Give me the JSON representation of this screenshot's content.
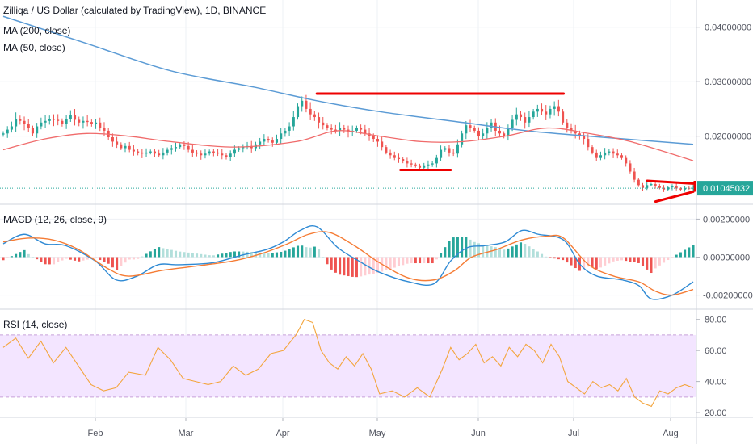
{
  "colors": {
    "up": "#26a69a",
    "down": "#ef5350",
    "ma200": "#5b9bd5",
    "ma50": "#f06b6b",
    "macd": "#2f8ad4",
    "signal": "#f57c35",
    "hist_up": "#26a69a",
    "hist_up_fade": "#b2dfdb",
    "hist_down": "#ef5350",
    "hist_down_fade": "#ffcdd2",
    "rsi": "#f3a53d",
    "rsi_band": "#f3e5ff",
    "trend": "#ee0000",
    "price_tag": "#26a69a",
    "grid": "#eef0f4"
  },
  "chart_data": [
    {
      "type": "candlestick",
      "title": "Zilliqa / US Dollar (calculated by TradingView), 1D, BINANCE",
      "indicators": [
        "MA (200, close)",
        "MA (50, close)"
      ],
      "x_labels": [
        "Feb",
        "Mar",
        "Apr",
        "May",
        "Jun",
        "Jul",
        "Aug"
      ],
      "y_ticks": [
        "0.04000000",
        "0.03000000",
        "0.02000000"
      ],
      "last_price": "0.01045032",
      "ylim": [
        0.0075,
        0.045
      ],
      "close_series": [
        0.0205,
        0.0212,
        0.0218,
        0.0232,
        0.0228,
        0.0222,
        0.0215,
        0.0205,
        0.0218,
        0.0225,
        0.0228,
        0.0232,
        0.023,
        0.0228,
        0.0222,
        0.0232,
        0.0238,
        0.023,
        0.0225,
        0.0228,
        0.0226,
        0.0222,
        0.0225,
        0.0215,
        0.021,
        0.0198,
        0.019,
        0.0185,
        0.0178,
        0.0182,
        0.0175,
        0.0172,
        0.017,
        0.0168,
        0.017,
        0.0172,
        0.0168,
        0.0165,
        0.017,
        0.0175,
        0.0178,
        0.018,
        0.0185,
        0.0182,
        0.0175,
        0.017,
        0.0168,
        0.0165,
        0.0168,
        0.0172,
        0.017,
        0.0168,
        0.0165,
        0.0162,
        0.0168,
        0.0175,
        0.0178,
        0.018,
        0.0182,
        0.0178,
        0.0185,
        0.019,
        0.0195,
        0.0192,
        0.0188,
        0.0195,
        0.0205,
        0.021,
        0.0218,
        0.0235,
        0.0255,
        0.0265,
        0.025,
        0.024,
        0.0235,
        0.0225,
        0.022,
        0.0215,
        0.0212,
        0.021,
        0.0215,
        0.0212,
        0.0208,
        0.021,
        0.0215,
        0.0212,
        0.0205,
        0.02,
        0.0195,
        0.019,
        0.018,
        0.017,
        0.0165,
        0.016,
        0.0158,
        0.0155,
        0.015,
        0.0148,
        0.0145,
        0.0142,
        0.0145,
        0.0148,
        0.015,
        0.016,
        0.0175,
        0.0178,
        0.017,
        0.0168,
        0.0185,
        0.0205,
        0.022,
        0.0215,
        0.021,
        0.02,
        0.0205,
        0.0215,
        0.0225,
        0.021,
        0.0205,
        0.02,
        0.0215,
        0.023,
        0.024,
        0.0235,
        0.0225,
        0.0235,
        0.0245,
        0.025,
        0.0245,
        0.024,
        0.025,
        0.0255,
        0.0245,
        0.0225,
        0.0215,
        0.021,
        0.0205,
        0.02,
        0.0195,
        0.018,
        0.017,
        0.016,
        0.0165,
        0.017,
        0.0172,
        0.0168,
        0.0165,
        0.016,
        0.015,
        0.0135,
        0.012,
        0.011,
        0.0105,
        0.011,
        0.0112,
        0.0108,
        0.0105,
        0.0102,
        0.0106,
        0.0108,
        0.0104,
        0.0102,
        0.0105,
        0.0104,
        0.0105
      ],
      "ma200_points": [
        [
          0,
          0.042
        ],
        [
          20,
          0.037
        ],
        [
          40,
          0.032
        ],
        [
          60,
          0.029
        ],
        [
          75,
          0.0265
        ],
        [
          90,
          0.0245
        ],
        [
          110,
          0.0225
        ],
        [
          125,
          0.021
        ],
        [
          140,
          0.02
        ],
        [
          165,
          0.0185
        ]
      ],
      "ma50_points": [
        [
          0,
          0.0175
        ],
        [
          10,
          0.0195
        ],
        [
          20,
          0.0205
        ],
        [
          30,
          0.02
        ],
        [
          40,
          0.019
        ],
        [
          55,
          0.018
        ],
        [
          70,
          0.019
        ],
        [
          80,
          0.021
        ],
        [
          90,
          0.02
        ],
        [
          100,
          0.019
        ],
        [
          110,
          0.019
        ],
        [
          120,
          0.02
        ],
        [
          130,
          0.0215
        ],
        [
          140,
          0.0205
        ],
        [
          150,
          0.019
        ],
        [
          165,
          0.0155
        ]
      ],
      "trendlines": [
        {
          "x1": 75,
          "y1": 0.0278,
          "x2": 134,
          "y2": 0.0278
        },
        {
          "x1": 95,
          "y1": 0.0138,
          "x2": 107,
          "y2": 0.0138
        },
        {
          "x1": 154,
          "y1": 0.0118,
          "x2": 165,
          "y2": 0.0113
        },
        {
          "x1": 156,
          "y1": 0.008,
          "x2": 165,
          "y2": 0.0098
        }
      ]
    },
    {
      "type": "macd",
      "title": "MACD (12, 26, close, 9)",
      "y_ticks": [
        "0.00200000",
        "0.00000000",
        "-0.00200000"
      ],
      "ylim": [
        -0.0024,
        0.0024
      ],
      "macd_points": [
        [
          0,
          0.0007
        ],
        [
          5,
          0.0012
        ],
        [
          10,
          0.0007
        ],
        [
          15,
          0.0006
        ],
        [
          22,
          -0.0002
        ],
        [
          27,
          -0.0012
        ],
        [
          32,
          -0.001
        ],
        [
          37,
          -0.0004
        ],
        [
          42,
          -0.0004
        ],
        [
          50,
          -0.0003
        ],
        [
          57,
          0.0001
        ],
        [
          63,
          0.0004
        ],
        [
          67,
          0.0008
        ],
        [
          71,
          0.0014
        ],
        [
          75,
          0.0016
        ],
        [
          80,
          0.0005
        ],
        [
          85,
          -0.0002
        ],
        [
          90,
          -0.0008
        ],
        [
          97,
          -0.0013
        ],
        [
          103,
          -0.0014
        ],
        [
          107,
          -0.0002
        ],
        [
          111,
          0.0005
        ],
        [
          115,
          0.0006
        ],
        [
          120,
          0.0008
        ],
        [
          124,
          0.0014
        ],
        [
          128,
          0.0012
        ],
        [
          134,
          0.0009
        ],
        [
          138,
          -0.0004
        ],
        [
          142,
          -0.001
        ],
        [
          148,
          -0.0012
        ],
        [
          152,
          -0.0015
        ],
        [
          155,
          -0.0022
        ],
        [
          160,
          -0.002
        ],
        [
          165,
          -0.0013
        ]
      ],
      "signal_points": [
        [
          0,
          0.0008
        ],
        [
          6,
          0.001
        ],
        [
          12,
          0.0009
        ],
        [
          18,
          0.0004
        ],
        [
          25,
          -0.0006
        ],
        [
          30,
          -0.001
        ],
        [
          38,
          -0.0007
        ],
        [
          45,
          -0.0005
        ],
        [
          55,
          -0.0002
        ],
        [
          62,
          0.0002
        ],
        [
          68,
          0.0007
        ],
        [
          73,
          0.0012
        ],
        [
          78,
          0.0013
        ],
        [
          84,
          0.0006
        ],
        [
          90,
          -0.0003
        ],
        [
          97,
          -0.0011
        ],
        [
          103,
          -0.0012
        ],
        [
          108,
          -0.0007
        ],
        [
          112,
          0.0
        ],
        [
          118,
          0.0004
        ],
        [
          124,
          0.0009
        ],
        [
          130,
          0.0011
        ],
        [
          134,
          0.001
        ],
        [
          140,
          -0.0004
        ],
        [
          146,
          -0.001
        ],
        [
          152,
          -0.0013
        ],
        [
          156,
          -0.0018
        ],
        [
          160,
          -0.002
        ],
        [
          165,
          -0.0017
        ]
      ]
    },
    {
      "type": "rsi",
      "title": "RSI (14, close)",
      "y_ticks": [
        "80.00",
        "60.00",
        "40.00",
        "20.00"
      ],
      "band": [
        30,
        70
      ],
      "ylim": [
        19,
        84
      ],
      "rsi_points": [
        [
          0,
          62
        ],
        [
          3,
          68
        ],
        [
          6,
          55
        ],
        [
          9,
          66
        ],
        [
          12,
          52
        ],
        [
          15,
          62
        ],
        [
          18,
          50
        ],
        [
          21,
          38
        ],
        [
          24,
          34
        ],
        [
          27,
          36
        ],
        [
          30,
          46
        ],
        [
          34,
          44
        ],
        [
          37,
          62
        ],
        [
          40,
          54
        ],
        [
          43,
          42
        ],
        [
          46,
          40
        ],
        [
          49,
          38
        ],
        [
          52,
          40
        ],
        [
          55,
          50
        ],
        [
          58,
          44
        ],
        [
          61,
          48
        ],
        [
          64,
          58
        ],
        [
          67,
          60
        ],
        [
          70,
          70
        ],
        [
          72,
          80
        ],
        [
          74,
          78
        ],
        [
          76,
          60
        ],
        [
          78,
          52
        ],
        [
          80,
          48
        ],
        [
          82,
          56
        ],
        [
          84,
          50
        ],
        [
          86,
          58
        ],
        [
          88,
          48
        ],
        [
          90,
          32
        ],
        [
          93,
          34
        ],
        [
          96,
          30
        ],
        [
          99,
          36
        ],
        [
          102,
          30
        ],
        [
          105,
          48
        ],
        [
          107,
          62
        ],
        [
          109,
          54
        ],
        [
          111,
          58
        ],
        [
          113,
          64
        ],
        [
          115,
          52
        ],
        [
          117,
          56
        ],
        [
          119,
          50
        ],
        [
          121,
          62
        ],
        [
          123,
          56
        ],
        [
          125,
          64
        ],
        [
          127,
          60
        ],
        [
          129,
          52
        ],
        [
          131,
          64
        ],
        [
          133,
          56
        ],
        [
          135,
          40
        ],
        [
          137,
          36
        ],
        [
          139,
          32
        ],
        [
          141,
          40
        ],
        [
          143,
          36
        ],
        [
          145,
          38
        ],
        [
          147,
          34
        ],
        [
          149,
          42
        ],
        [
          151,
          30
        ],
        [
          153,
          26
        ],
        [
          155,
          24
        ],
        [
          157,
          34
        ],
        [
          159,
          32
        ],
        [
          161,
          36
        ],
        [
          163,
          38
        ],
        [
          165,
          36
        ]
      ]
    }
  ]
}
